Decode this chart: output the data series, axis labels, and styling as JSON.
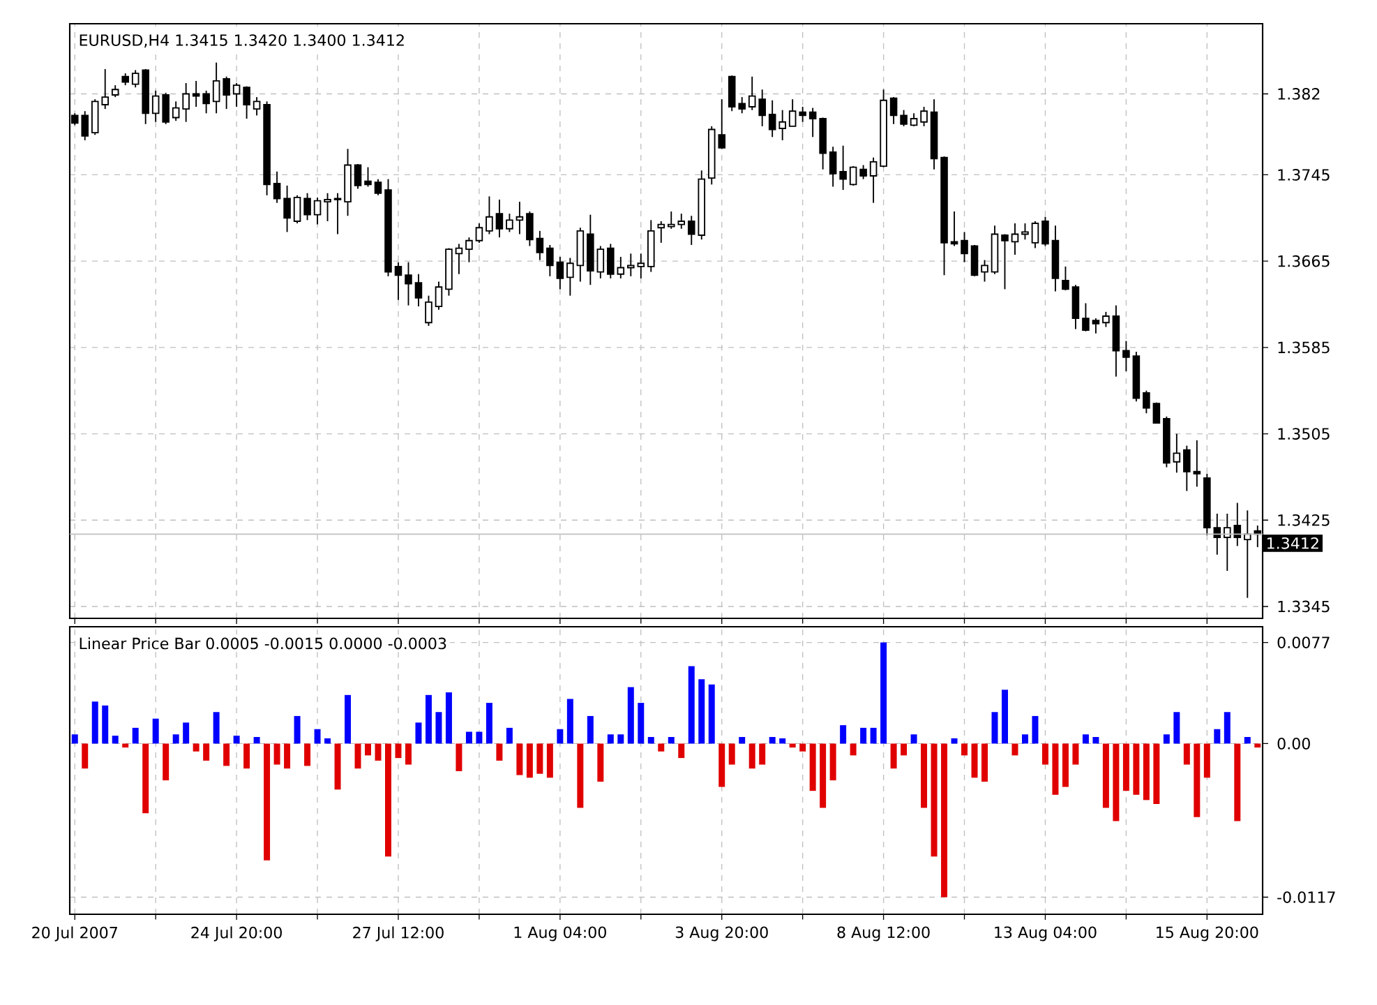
{
  "chart_data": [
    {
      "type": "candlestick",
      "title": "EURUSD,H4  1.3415 1.3420 1.3400 1.3412",
      "categories": [
        null,
        null,
        null,
        null,
        null,
        null,
        null,
        null,
        null,
        null,
        null,
        null,
        null,
        null,
        null,
        null,
        null,
        null,
        null,
        null,
        null,
        null,
        null,
        null,
        null,
        null,
        null,
        null,
        null,
        null,
        null,
        null,
        null,
        null,
        null,
        null,
        null,
        null,
        null,
        null,
        null,
        null,
        null,
        null,
        null,
        null,
        null,
        null,
        null,
        null,
        null,
        null,
        null,
        null,
        null,
        null,
        null,
        null,
        null,
        null,
        null,
        null,
        null,
        null,
        null,
        null,
        null,
        null,
        null,
        null,
        null,
        null,
        null,
        null,
        null,
        null,
        null,
        null,
        null,
        null,
        null,
        null,
        null,
        null,
        null,
        null,
        null,
        null,
        null,
        null,
        null,
        null,
        null,
        null,
        null,
        null,
        null,
        null,
        null,
        null,
        null,
        null,
        null,
        null,
        null,
        null,
        null,
        null,
        null,
        null,
        null,
        null,
        null,
        null,
        null,
        null,
        null,
        null
      ],
      "ohlc": [
        [
          1.38,
          1.3802,
          1.3791,
          1.3793
        ],
        [
          1.38,
          1.3804,
          1.3777,
          1.3781
        ],
        [
          1.3784,
          1.3815,
          1.3782,
          1.3813
        ],
        [
          1.381,
          1.3843,
          1.3806,
          1.3817
        ],
        [
          1.3819,
          1.3828,
          1.3817,
          1.3824
        ],
        [
          1.3836,
          1.3839,
          1.3828,
          1.3831
        ],
        [
          1.3829,
          1.3842,
          1.3826,
          1.3839
        ],
        [
          1.3842,
          1.3843,
          1.3792,
          1.3802
        ],
        [
          1.3802,
          1.3823,
          1.3794,
          1.3818
        ],
        [
          1.3819,
          1.3821,
          1.3792,
          1.3794
        ],
        [
          1.3798,
          1.3813,
          1.3795,
          1.3807
        ],
        [
          1.3806,
          1.383,
          1.3794,
          1.382
        ],
        [
          1.382,
          1.3832,
          1.3808,
          1.3818
        ],
        [
          1.382,
          1.3823,
          1.3802,
          1.3811
        ],
        [
          1.3813,
          1.3849,
          1.3802,
          1.3832
        ],
        [
          1.3834,
          1.3836,
          1.3806,
          1.3819
        ],
        [
          1.382,
          1.383,
          1.3808,
          1.3828
        ],
        [
          1.3826,
          1.3827,
          1.3797,
          1.381
        ],
        [
          1.3806,
          1.3817,
          1.38,
          1.3813
        ],
        [
          1.381,
          1.3813,
          1.3726,
          1.3736
        ],
        [
          1.3737,
          1.3748,
          1.3719,
          1.3723
        ],
        [
          1.3723,
          1.3735,
          1.3692,
          1.3705
        ],
        [
          1.3702,
          1.3726,
          1.37,
          1.3724
        ],
        [
          1.3723,
          1.3728,
          1.3703,
          1.3708
        ],
        [
          1.3708,
          1.3724,
          1.3699,
          1.3721
        ],
        [
          1.372,
          1.3728,
          1.3702,
          1.3722
        ],
        [
          1.3722,
          1.3728,
          1.369,
          1.3723
        ],
        [
          1.372,
          1.3769,
          1.3707,
          1.3754
        ],
        [
          1.3754,
          1.3755,
          1.3732,
          1.3735
        ],
        [
          1.3739,
          1.3752,
          1.3734,
          1.3736
        ],
        [
          1.3738,
          1.3741,
          1.3726,
          1.3728
        ],
        [
          1.3731,
          1.3741,
          1.3651,
          1.3655
        ],
        [
          1.366,
          1.3664,
          1.3629,
          1.3652
        ],
        [
          1.3652,
          1.3664,
          1.3624,
          1.3644
        ],
        [
          1.3645,
          1.3653,
          1.3623,
          1.3631
        ],
        [
          1.3608,
          1.3633,
          1.3605,
          1.3627
        ],
        [
          1.3623,
          1.3646,
          1.362,
          1.3641
        ],
        [
          1.3639,
          1.3677,
          1.3633,
          1.3676
        ],
        [
          1.3672,
          1.3681,
          1.3653,
          1.3677
        ],
        [
          1.3676,
          1.3687,
          1.3664,
          1.3684
        ],
        [
          1.3684,
          1.37,
          1.3682,
          1.3696
        ],
        [
          1.3693,
          1.3725,
          1.369,
          1.3706
        ],
        [
          1.3709,
          1.3722,
          1.3687,
          1.3695
        ],
        [
          1.3695,
          1.3709,
          1.3692,
          1.3703
        ],
        [
          1.3703,
          1.372,
          1.369,
          1.3706
        ],
        [
          1.3709,
          1.3711,
          1.3679,
          1.3685
        ],
        [
          1.3686,
          1.3693,
          1.3666,
          1.3673
        ],
        [
          1.3677,
          1.368,
          1.3651,
          1.3661
        ],
        [
          1.3664,
          1.3669,
          1.3639,
          1.3649
        ],
        [
          1.365,
          1.3668,
          1.3633,
          1.3663
        ],
        [
          1.3661,
          1.3696,
          1.3646,
          1.3693
        ],
        [
          1.369,
          1.3708,
          1.3643,
          1.3656
        ],
        [
          1.3655,
          1.3679,
          1.3649,
          1.3676
        ],
        [
          1.3677,
          1.3681,
          1.3649,
          1.3653
        ],
        [
          1.3653,
          1.3669,
          1.3649,
          1.3659
        ],
        [
          1.3659,
          1.3672,
          1.3651,
          1.3661
        ],
        [
          1.366,
          1.3672,
          1.3649,
          1.3663
        ],
        [
          1.366,
          1.3703,
          1.3655,
          1.3693
        ],
        [
          1.3696,
          1.3702,
          1.3682,
          1.3699
        ],
        [
          1.3697,
          1.3711,
          1.3695,
          1.3699
        ],
        [
          1.3699,
          1.3709,
          1.3695,
          1.3702
        ],
        [
          1.3702,
          1.3707,
          1.368,
          1.369
        ],
        [
          1.3689,
          1.3749,
          1.3685,
          1.3741
        ],
        [
          1.3742,
          1.379,
          1.3736,
          1.3787
        ],
        [
          1.3782,
          1.3815,
          1.3769,
          1.377
        ],
        [
          1.3836,
          1.3837,
          1.3804,
          1.3808
        ],
        [
          1.3811,
          1.3817,
          1.3802,
          1.3806
        ],
        [
          1.3808,
          1.3836,
          1.3805,
          1.3818
        ],
        [
          1.3815,
          1.3824,
          1.379,
          1.38
        ],
        [
          1.3801,
          1.3814,
          1.378,
          1.3787
        ],
        [
          1.3788,
          1.3805,
          1.3777,
          1.3794
        ],
        [
          1.379,
          1.3815,
          1.379,
          1.3804
        ],
        [
          1.3803,
          1.3808,
          1.3794,
          1.38
        ],
        [
          1.3803,
          1.3807,
          1.378,
          1.3797
        ],
        [
          1.3797,
          1.3798,
          1.375,
          1.3765
        ],
        [
          1.3766,
          1.3771,
          1.3734,
          1.3746
        ],
        [
          1.3748,
          1.3772,
          1.3731,
          1.3741
        ],
        [
          1.3736,
          1.3753,
          1.3735,
          1.3752
        ],
        [
          1.375,
          1.3754,
          1.3741,
          1.3744
        ],
        [
          1.3744,
          1.3761,
          1.3719,
          1.3757
        ],
        [
          1.3753,
          1.3824,
          1.3752,
          1.3814
        ],
        [
          1.3816,
          1.3817,
          1.3792,
          1.38
        ],
        [
          1.38,
          1.3805,
          1.379,
          1.3792
        ],
        [
          1.3791,
          1.3802,
          1.379,
          1.3797
        ],
        [
          1.3794,
          1.3808,
          1.379,
          1.3804
        ],
        [
          1.3803,
          1.3815,
          1.375,
          1.376
        ],
        [
          1.3761,
          1.3762,
          1.3652,
          1.3682
        ],
        [
          1.3683,
          1.3711,
          1.3679,
          1.3681
        ],
        [
          1.3684,
          1.3692,
          1.3664,
          1.3672
        ],
        [
          1.3679,
          1.368,
          1.3651,
          1.3652
        ],
        [
          1.3655,
          1.3666,
          1.3646,
          1.3661
        ],
        [
          1.3655,
          1.3698,
          1.3653,
          1.369
        ],
        [
          1.3689,
          1.369,
          1.3639,
          1.3684
        ],
        [
          1.3683,
          1.37,
          1.3671,
          1.369
        ],
        [
          1.369,
          1.37,
          1.3685,
          1.3692
        ],
        [
          1.3682,
          1.3702,
          1.3677,
          1.37
        ],
        [
          1.3702,
          1.3706,
          1.3679,
          1.3681
        ],
        [
          1.3684,
          1.3698,
          1.3637,
          1.3649
        ],
        [
          1.3647,
          1.366,
          1.3638,
          1.3639
        ],
        [
          1.3641,
          1.3643,
          1.3602,
          1.3612
        ],
        [
          1.3612,
          1.3626,
          1.36,
          1.3601
        ],
        [
          1.361,
          1.3612,
          1.3598,
          1.3607
        ],
        [
          1.3608,
          1.3618,
          1.3604,
          1.3614
        ],
        [
          1.3614,
          1.3624,
          1.3558,
          1.3582
        ],
        [
          1.3582,
          1.3591,
          1.3563,
          1.3576
        ],
        [
          1.3577,
          1.3581,
          1.3535,
          1.3538
        ],
        [
          1.3543,
          1.3545,
          1.3524,
          1.3529
        ],
        [
          1.3533,
          1.3534,
          1.3515,
          1.3515
        ],
        [
          1.3519,
          1.3521,
          1.3474,
          1.3478
        ],
        [
          1.3479,
          1.3505,
          1.3469,
          1.3487
        ],
        [
          1.349,
          1.3494,
          1.3452,
          1.347
        ],
        [
          1.347,
          1.3499,
          1.3456,
          1.3468
        ],
        [
          1.3464,
          1.3468,
          1.3411,
          1.3418
        ],
        [
          1.3418,
          1.3431,
          1.3393,
          1.3409
        ],
        [
          1.3409,
          1.3431,
          1.3378,
          1.3418
        ],
        [
          1.342,
          1.3441,
          1.3401,
          1.3409
        ],
        [
          1.3407,
          1.3434,
          1.3353,
          1.3412
        ],
        [
          1.3415,
          1.342,
          1.34,
          1.3412
        ]
      ],
      "ylim": [
        1.3334,
        1.3885
      ],
      "yticks": [
        1.382,
        1.3745,
        1.3665,
        1.3585,
        1.3505,
        1.3425,
        1.3345
      ],
      "ref_lines": [
        {
          "axis": "y",
          "value": 1.3412,
          "label": "1.3412",
          "color": "#c0c0c0"
        }
      ],
      "grid": true,
      "tick_labels": "y"
    },
    {
      "type": "bar",
      "title": "Linear Price Bar 0.0005 -0.0015 0.0000 -0.0003",
      "categories": [
        "20 Jul 2007",
        null,
        null,
        null,
        null,
        null,
        null,
        null,
        null,
        null,
        null,
        null,
        null,
        null,
        null,
        null,
        "24 Jul 20:00",
        null,
        null,
        null,
        null,
        null,
        null,
        null,
        null,
        null,
        null,
        null,
        null,
        null,
        null,
        null,
        "27 Jul 12:00",
        null,
        null,
        null,
        null,
        null,
        null,
        null,
        null,
        null,
        null,
        null,
        null,
        null,
        null,
        null,
        "1 Aug 04:00",
        null,
        null,
        null,
        null,
        null,
        null,
        null,
        null,
        null,
        null,
        null,
        null,
        null,
        null,
        null,
        "3 Aug 20:00",
        null,
        null,
        null,
        null,
        null,
        null,
        null,
        null,
        null,
        null,
        null,
        null,
        null,
        null,
        null,
        "8 Aug 12:00",
        null,
        null,
        null,
        null,
        null,
        null,
        null,
        null,
        null,
        null,
        null,
        null,
        null,
        null,
        null,
        "13 Aug 04:00",
        null,
        null,
        null,
        null,
        null,
        null,
        null,
        null,
        null,
        null,
        null,
        null,
        null,
        null,
        null,
        "15 Aug 20:00",
        null,
        null,
        null,
        null,
        null
      ],
      "series": [
        {
          "color": "#0000ff",
          "values": [
            0.0007,
            null,
            0.0032,
            0.0029,
            0.0006,
            null,
            0.0012,
            null,
            0.0019,
            null,
            0.0007,
            0.0016,
            null,
            null,
            0.0024,
            null,
            0.0006,
            null,
            0.0005,
            null,
            null,
            null,
            0.0021,
            null,
            0.0011,
            0.0004,
            null,
            0.0037,
            null,
            null,
            null,
            null,
            null,
            null,
            0.0016,
            0.0037,
            0.0024,
            0.0039,
            null,
            0.0009,
            0.0009,
            0.0031,
            null,
            0.0012,
            null,
            null,
            null,
            null,
            0.0011,
            0.0034,
            null,
            0.0021,
            null,
            0.0007,
            0.0007,
            0.0043,
            0.0031,
            0.0005,
            null,
            0.0005,
            null,
            0.0059,
            0.0049,
            0.0045,
            null,
            null,
            0.0005,
            null,
            null,
            0.0005,
            0.0004,
            null,
            null,
            null,
            null,
            null,
            0.0014,
            null,
            0.0012,
            0.0012,
            0.0077,
            null,
            null,
            0.0007,
            null,
            null,
            null,
            0.0004,
            null,
            null,
            null,
            0.0024,
            0.0041,
            null,
            0.0007,
            0.0021,
            null,
            null,
            null,
            null,
            0.0007,
            0.0005,
            null,
            null,
            null,
            null,
            null,
            null,
            0.0007,
            0.0024,
            null,
            null,
            null,
            0.0011,
            0.0024,
            null,
            0.0005,
            null
          ]
        },
        {
          "color": "#e00000",
          "values": [
            null,
            -0.0019,
            null,
            null,
            null,
            -0.0003,
            null,
            -0.0053,
            null,
            -0.0028,
            null,
            null,
            -0.0006,
            -0.0013,
            null,
            -0.0017,
            null,
            -0.0019,
            null,
            -0.0089,
            -0.0016,
            -0.0019,
            null,
            -0.0017,
            null,
            null,
            -0.0035,
            null,
            -0.0019,
            -0.0009,
            -0.0013,
            -0.0086,
            -0.0011,
            -0.0016,
            null,
            null,
            null,
            null,
            -0.0021,
            null,
            null,
            null,
            -0.0013,
            null,
            -0.0024,
            -0.0026,
            -0.0023,
            -0.0026,
            null,
            null,
            -0.0049,
            null,
            -0.0029,
            null,
            null,
            null,
            null,
            null,
            -0.0006,
            null,
            -0.0011,
            null,
            null,
            null,
            -0.0033,
            -0.0016,
            null,
            -0.0019,
            -0.0016,
            null,
            null,
            -0.0003,
            -0.0006,
            -0.0036,
            -0.0049,
            -0.0028,
            null,
            -0.0009,
            null,
            null,
            null,
            -0.0019,
            -0.0009,
            null,
            -0.0049,
            -0.0086,
            -0.0117,
            null,
            -0.0009,
            -0.0026,
            -0.0029,
            null,
            null,
            -0.0009,
            null,
            null,
            -0.0016,
            -0.0039,
            -0.0033,
            -0.0016,
            null,
            null,
            -0.0049,
            -0.0059,
            -0.0036,
            -0.0039,
            -0.0043,
            -0.0046,
            null,
            null,
            -0.0016,
            -0.0056,
            -0.0026,
            null,
            null,
            -0.0059,
            null,
            -0.0003
          ]
        }
      ],
      "ylim": [
        -0.013,
        0.0089
      ],
      "yticks": [
        0.0077,
        {
          "value": 0,
          "label": "0.00"
        },
        -0.0117
      ],
      "grid": true
    }
  ]
}
